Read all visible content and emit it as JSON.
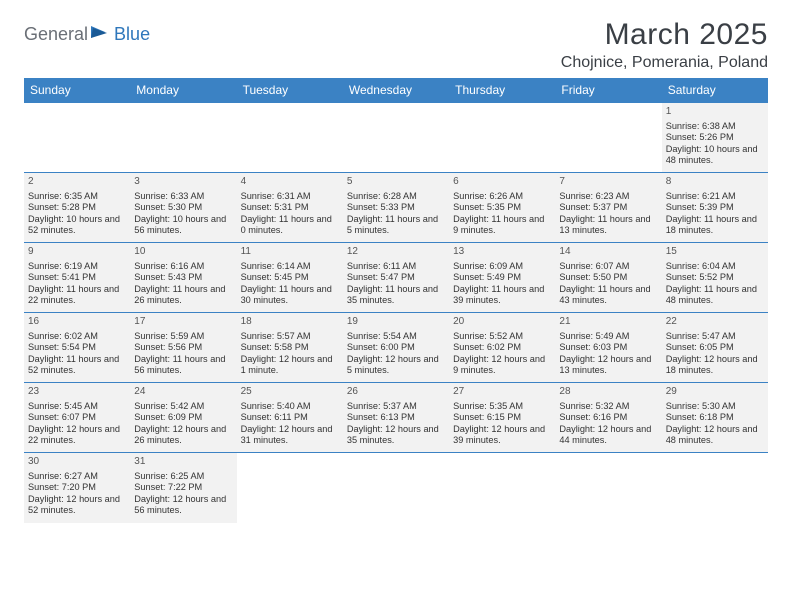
{
  "logo": {
    "general": "General",
    "blue": "Blue"
  },
  "title": "March 2025",
  "location": "Chojnice, Pomerania, Poland",
  "colors": {
    "header_bg": "#3b82c4",
    "header_text": "#ffffff",
    "cell_bg": "#f2f2f2",
    "border": "#3b82c4",
    "logo_gray": "#6a6f76",
    "logo_blue": "#2f77bb"
  },
  "weekdays": [
    "Sunday",
    "Monday",
    "Tuesday",
    "Wednesday",
    "Thursday",
    "Friday",
    "Saturday"
  ],
  "weeks": [
    [
      null,
      null,
      null,
      null,
      null,
      null,
      {
        "n": "1",
        "sr": "Sunrise: 6:38 AM",
        "ss": "Sunset: 5:26 PM",
        "dl": "Daylight: 10 hours and 48 minutes."
      }
    ],
    [
      {
        "n": "2",
        "sr": "Sunrise: 6:35 AM",
        "ss": "Sunset: 5:28 PM",
        "dl": "Daylight: 10 hours and 52 minutes."
      },
      {
        "n": "3",
        "sr": "Sunrise: 6:33 AM",
        "ss": "Sunset: 5:30 PM",
        "dl": "Daylight: 10 hours and 56 minutes."
      },
      {
        "n": "4",
        "sr": "Sunrise: 6:31 AM",
        "ss": "Sunset: 5:31 PM",
        "dl": "Daylight: 11 hours and 0 minutes."
      },
      {
        "n": "5",
        "sr": "Sunrise: 6:28 AM",
        "ss": "Sunset: 5:33 PM",
        "dl": "Daylight: 11 hours and 5 minutes."
      },
      {
        "n": "6",
        "sr": "Sunrise: 6:26 AM",
        "ss": "Sunset: 5:35 PM",
        "dl": "Daylight: 11 hours and 9 minutes."
      },
      {
        "n": "7",
        "sr": "Sunrise: 6:23 AM",
        "ss": "Sunset: 5:37 PM",
        "dl": "Daylight: 11 hours and 13 minutes."
      },
      {
        "n": "8",
        "sr": "Sunrise: 6:21 AM",
        "ss": "Sunset: 5:39 PM",
        "dl": "Daylight: 11 hours and 18 minutes."
      }
    ],
    [
      {
        "n": "9",
        "sr": "Sunrise: 6:19 AM",
        "ss": "Sunset: 5:41 PM",
        "dl": "Daylight: 11 hours and 22 minutes."
      },
      {
        "n": "10",
        "sr": "Sunrise: 6:16 AM",
        "ss": "Sunset: 5:43 PM",
        "dl": "Daylight: 11 hours and 26 minutes."
      },
      {
        "n": "11",
        "sr": "Sunrise: 6:14 AM",
        "ss": "Sunset: 5:45 PM",
        "dl": "Daylight: 11 hours and 30 minutes."
      },
      {
        "n": "12",
        "sr": "Sunrise: 6:11 AM",
        "ss": "Sunset: 5:47 PM",
        "dl": "Daylight: 11 hours and 35 minutes."
      },
      {
        "n": "13",
        "sr": "Sunrise: 6:09 AM",
        "ss": "Sunset: 5:49 PM",
        "dl": "Daylight: 11 hours and 39 minutes."
      },
      {
        "n": "14",
        "sr": "Sunrise: 6:07 AM",
        "ss": "Sunset: 5:50 PM",
        "dl": "Daylight: 11 hours and 43 minutes."
      },
      {
        "n": "15",
        "sr": "Sunrise: 6:04 AM",
        "ss": "Sunset: 5:52 PM",
        "dl": "Daylight: 11 hours and 48 minutes."
      }
    ],
    [
      {
        "n": "16",
        "sr": "Sunrise: 6:02 AM",
        "ss": "Sunset: 5:54 PM",
        "dl": "Daylight: 11 hours and 52 minutes."
      },
      {
        "n": "17",
        "sr": "Sunrise: 5:59 AM",
        "ss": "Sunset: 5:56 PM",
        "dl": "Daylight: 11 hours and 56 minutes."
      },
      {
        "n": "18",
        "sr": "Sunrise: 5:57 AM",
        "ss": "Sunset: 5:58 PM",
        "dl": "Daylight: 12 hours and 1 minute."
      },
      {
        "n": "19",
        "sr": "Sunrise: 5:54 AM",
        "ss": "Sunset: 6:00 PM",
        "dl": "Daylight: 12 hours and 5 minutes."
      },
      {
        "n": "20",
        "sr": "Sunrise: 5:52 AM",
        "ss": "Sunset: 6:02 PM",
        "dl": "Daylight: 12 hours and 9 minutes."
      },
      {
        "n": "21",
        "sr": "Sunrise: 5:49 AM",
        "ss": "Sunset: 6:03 PM",
        "dl": "Daylight: 12 hours and 13 minutes."
      },
      {
        "n": "22",
        "sr": "Sunrise: 5:47 AM",
        "ss": "Sunset: 6:05 PM",
        "dl": "Daylight: 12 hours and 18 minutes."
      }
    ],
    [
      {
        "n": "23",
        "sr": "Sunrise: 5:45 AM",
        "ss": "Sunset: 6:07 PM",
        "dl": "Daylight: 12 hours and 22 minutes."
      },
      {
        "n": "24",
        "sr": "Sunrise: 5:42 AM",
        "ss": "Sunset: 6:09 PM",
        "dl": "Daylight: 12 hours and 26 minutes."
      },
      {
        "n": "25",
        "sr": "Sunrise: 5:40 AM",
        "ss": "Sunset: 6:11 PM",
        "dl": "Daylight: 12 hours and 31 minutes."
      },
      {
        "n": "26",
        "sr": "Sunrise: 5:37 AM",
        "ss": "Sunset: 6:13 PM",
        "dl": "Daylight: 12 hours and 35 minutes."
      },
      {
        "n": "27",
        "sr": "Sunrise: 5:35 AM",
        "ss": "Sunset: 6:15 PM",
        "dl": "Daylight: 12 hours and 39 minutes."
      },
      {
        "n": "28",
        "sr": "Sunrise: 5:32 AM",
        "ss": "Sunset: 6:16 PM",
        "dl": "Daylight: 12 hours and 44 minutes."
      },
      {
        "n": "29",
        "sr": "Sunrise: 5:30 AM",
        "ss": "Sunset: 6:18 PM",
        "dl": "Daylight: 12 hours and 48 minutes."
      }
    ],
    [
      {
        "n": "30",
        "sr": "Sunrise: 6:27 AM",
        "ss": "Sunset: 7:20 PM",
        "dl": "Daylight: 12 hours and 52 minutes."
      },
      {
        "n": "31",
        "sr": "Sunrise: 6:25 AM",
        "ss": "Sunset: 7:22 PM",
        "dl": "Daylight: 12 hours and 56 minutes."
      },
      null,
      null,
      null,
      null,
      null
    ]
  ]
}
